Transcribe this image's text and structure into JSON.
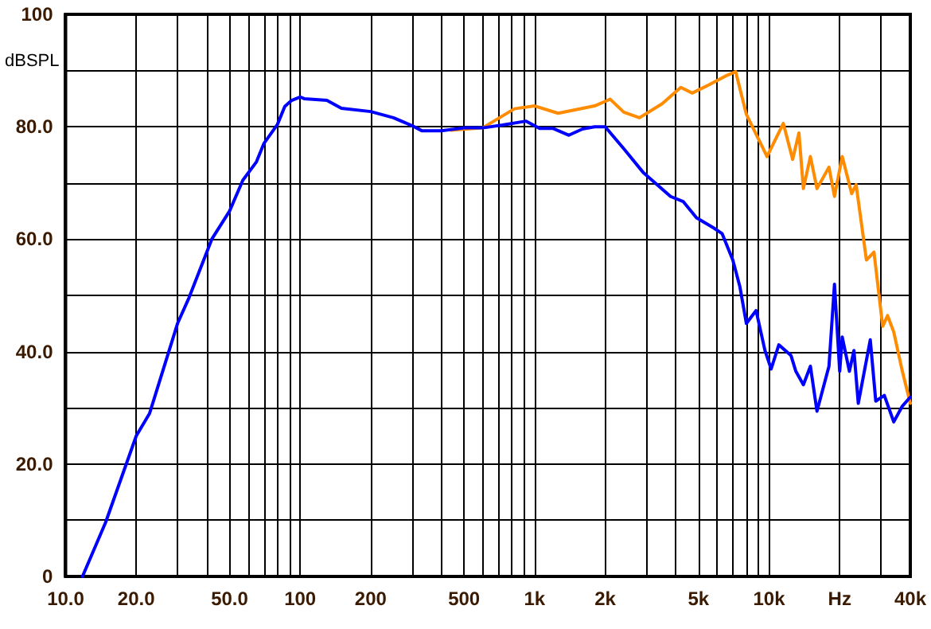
{
  "chart_data": {
    "type": "line",
    "ylabel": "dBSPL",
    "log": "x",
    "grid": true,
    "marker": "none",
    "line_style": "solid",
    "xlim": [
      10,
      40000
    ],
    "xticks": [
      {
        "value": 10,
        "label": "10.0"
      },
      {
        "value": 20,
        "label": "20.0"
      },
      {
        "value": 30,
        "label": null
      },
      {
        "value": 40,
        "label": null
      },
      {
        "value": 50,
        "label": "50.0"
      },
      {
        "value": 60,
        "label": null
      },
      {
        "value": 70,
        "label": null
      },
      {
        "value": 80,
        "label": null
      },
      {
        "value": 90,
        "label": null
      },
      100,
      200,
      {
        "value": 300,
        "label": null
      },
      {
        "value": 400,
        "label": null
      },
      500,
      {
        "value": 600,
        "label": null
      },
      {
        "value": 700,
        "label": null
      },
      {
        "value": 800,
        "label": null
      },
      {
        "value": 900,
        "label": null
      },
      {
        "value": 1000,
        "label": "1k"
      },
      {
        "value": 2000,
        "label": "2k"
      },
      {
        "value": 3000,
        "label": null
      },
      {
        "value": 4000,
        "label": null
      },
      {
        "value": 5000,
        "label": "5k"
      },
      {
        "value": 6000,
        "label": null
      },
      {
        "value": 7000,
        "label": null
      },
      {
        "value": 8000,
        "label": null
      },
      {
        "value": 9000,
        "label": null
      },
      {
        "value": 10000,
        "label": "10k"
      },
      {
        "value": 20000,
        "label": "Hz"
      },
      {
        "value": 30000,
        "label": null
      },
      {
        "value": 40000,
        "label": "40k"
      }
    ],
    "ylim": [
      0,
      100
    ],
    "yticks": [
      0,
      {
        "value": 10,
        "label": null
      },
      {
        "value": 20,
        "label": "20.0"
      },
      {
        "value": 30,
        "label": null
      },
      {
        "value": 40,
        "label": "40.0"
      },
      {
        "value": 50,
        "label": null
      },
      {
        "value": 60,
        "label": "60.0"
      },
      {
        "value": 70,
        "label": null
      },
      {
        "value": 80,
        "label": "80.0"
      },
      {
        "value": 90,
        "label": null
      },
      100
    ],
    "series": [
      {
        "color": "#ff8c00",
        "x": [
          440,
          600,
          820,
          1000,
          1260,
          1800,
          2100,
          2400,
          2800,
          3500,
          4200,
          4700,
          5500,
          6500,
          7200,
          8000,
          9800,
          11500,
          12600,
          13400,
          14000,
          15000,
          16000,
          18000,
          19000,
          20500,
          22500,
          23500,
          26000,
          28000,
          30500,
          32000,
          34000,
          37000,
          40000
        ],
        "values": [
          79.4,
          79.8,
          83.2,
          83.7,
          82.4,
          83.7,
          84.9,
          82.6,
          81.6,
          84.1,
          87,
          86,
          87.4,
          89,
          89.8,
          82.2,
          74.7,
          80.6,
          74.2,
          78.9,
          69,
          74.7,
          69,
          72.8,
          67.6,
          74.7,
          68.1,
          69.7,
          56.3,
          57.7,
          44.5,
          46.4,
          43.5,
          36.5,
          30.8
        ]
      },
      {
        "color": "#0000ff",
        "x": [
          11.8,
          14.8,
          20,
          22.8,
          30,
          33.6,
          42,
          50,
          57,
          65,
          70,
          80,
          86,
          92,
          100,
          104,
          130,
          150,
          200,
          250,
          300,
          330,
          400,
          500,
          600,
          730,
          920,
          1050,
          1200,
          1400,
          1600,
          1800,
          2000,
          2400,
          2900,
          3800,
          4300,
          4900,
          5800,
          6300,
          7000,
          7500,
          8000,
          8800,
          9600,
          10200,
          11000,
          12400,
          13000,
          14000,
          15000,
          16000,
          18000,
          19000,
          20000,
          20500,
          22000,
          23000,
          24000,
          27000,
          28500,
          31000,
          34000,
          37000,
          40000
        ],
        "values": [
          0,
          9.6,
          25,
          29,
          45,
          49.6,
          60,
          65,
          70.5,
          73.7,
          77,
          80.4,
          83.6,
          84.7,
          85.3,
          85,
          84.7,
          83.3,
          82.7,
          81.6,
          80.2,
          79.3,
          79.3,
          79.8,
          79.8,
          80.3,
          81,
          79.7,
          79.7,
          78.5,
          79.6,
          80,
          80,
          76.1,
          71.9,
          67.6,
          66.7,
          63.8,
          62,
          61,
          56.3,
          51.6,
          45,
          47.3,
          40.2,
          36.9,
          41.2,
          39.3,
          36.5,
          34.1,
          37.4,
          29.4,
          37.4,
          52,
          36.5,
          42.6,
          36.5,
          40.2,
          30.8,
          42.1,
          31.2,
          32.2,
          27.5,
          30.3,
          31.9
        ]
      }
    ]
  }
}
